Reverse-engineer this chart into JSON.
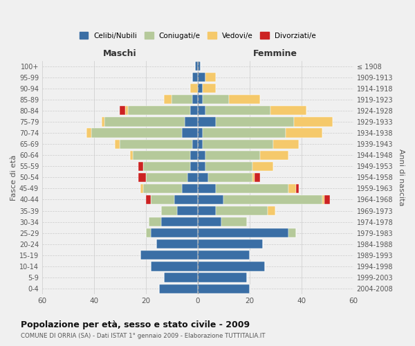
{
  "age_groups": [
    "0-4",
    "5-9",
    "10-14",
    "15-19",
    "20-24",
    "25-29",
    "30-34",
    "35-39",
    "40-44",
    "45-49",
    "50-54",
    "55-59",
    "60-64",
    "65-69",
    "70-74",
    "75-79",
    "80-84",
    "85-89",
    "90-94",
    "95-99",
    "100+"
  ],
  "birth_years": [
    "2004-2008",
    "1999-2003",
    "1994-1998",
    "1989-1993",
    "1984-1988",
    "1979-1983",
    "1974-1978",
    "1969-1973",
    "1964-1968",
    "1959-1963",
    "1954-1958",
    "1949-1953",
    "1944-1948",
    "1939-1943",
    "1934-1938",
    "1929-1933",
    "1924-1928",
    "1919-1923",
    "1914-1918",
    "1909-1913",
    "≤ 1908"
  ],
  "maschi": {
    "celibi": [
      15,
      13,
      18,
      22,
      16,
      18,
      14,
      8,
      9,
      6,
      4,
      3,
      3,
      2,
      6,
      5,
      3,
      2,
      0,
      2,
      1
    ],
    "coniugati": [
      0,
      0,
      0,
      0,
      0,
      2,
      5,
      6,
      9,
      15,
      16,
      18,
      22,
      28,
      35,
      31,
      24,
      8,
      0,
      0,
      0
    ],
    "vedovi": [
      0,
      0,
      0,
      0,
      0,
      0,
      0,
      0,
      0,
      1,
      0,
      0,
      1,
      2,
      2,
      1,
      1,
      3,
      3,
      0,
      0
    ],
    "divorziati": [
      0,
      0,
      0,
      0,
      0,
      0,
      0,
      0,
      2,
      0,
      3,
      2,
      0,
      0,
      0,
      0,
      2,
      0,
      0,
      0,
      0
    ]
  },
  "femmine": {
    "nubili": [
      20,
      19,
      26,
      20,
      25,
      35,
      9,
      7,
      10,
      7,
      4,
      3,
      3,
      2,
      2,
      7,
      3,
      2,
      2,
      3,
      1
    ],
    "coniugate": [
      0,
      0,
      0,
      0,
      0,
      3,
      10,
      20,
      38,
      28,
      17,
      18,
      21,
      27,
      32,
      30,
      25,
      10,
      0,
      0,
      0
    ],
    "vedove": [
      0,
      0,
      0,
      0,
      0,
      0,
      0,
      3,
      1,
      3,
      1,
      8,
      11,
      10,
      14,
      15,
      14,
      12,
      5,
      4,
      0
    ],
    "divorziate": [
      0,
      0,
      0,
      0,
      0,
      0,
      0,
      0,
      2,
      1,
      2,
      0,
      0,
      0,
      0,
      0,
      0,
      0,
      0,
      0,
      0
    ]
  },
  "colors": {
    "celibi": "#3a6ea5",
    "coniugati": "#b5c99a",
    "vedovi": "#f5c96b",
    "divorziati": "#cc2222"
  },
  "xlim": 60,
  "title": "Popolazione per età, sesso e stato civile - 2009",
  "subtitle": "COMUNE DI ORRIA (SA) - Dati ISTAT 1° gennaio 2009 - Elaborazione TUTTITALIA.IT",
  "xlabel_left": "Maschi",
  "xlabel_right": "Femmine",
  "ylabel_left": "Fasce di età",
  "ylabel_right": "Anni di nascita",
  "legend_labels": [
    "Celibi/Nubili",
    "Coniugati/e",
    "Vedovi/e",
    "Divorziati/e"
  ],
  "background_color": "#f0f0f0",
  "grid_color": "#cccccc"
}
